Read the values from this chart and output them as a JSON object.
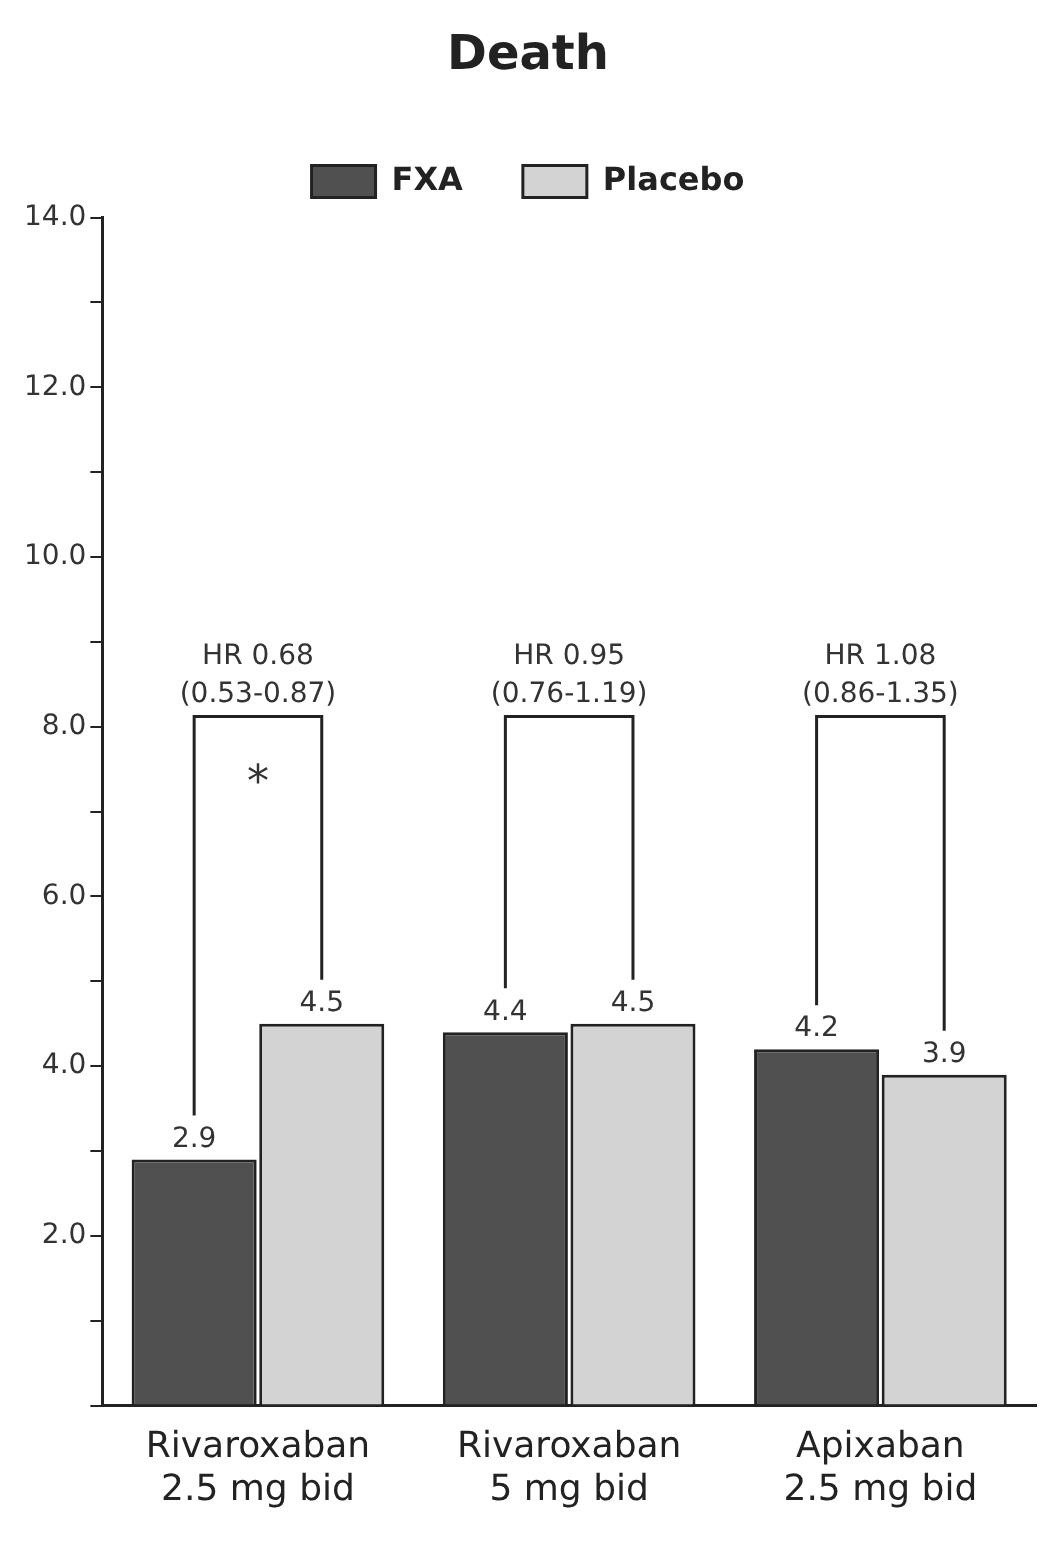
{
  "chart_data": {
    "type": "bar",
    "title": "Death",
    "categories": [
      "Rivaroxaban\n2.5 mg bid",
      "Rivaroxaban\n5 mg bid",
      "Apixaban\n2.5 mg bid"
    ],
    "series": [
      {
        "name": "FXA",
        "color": "#505050",
        "values": [
          2.9,
          4.4,
          4.2
        ]
      },
      {
        "name": "Placebo",
        "color": "#d3d3d3",
        "values": [
          4.5,
          4.5,
          3.9
        ]
      }
    ],
    "ylim": [
      0,
      14
    ],
    "yticks": [
      {
        "value": 0,
        "label": null
      },
      {
        "value": 1,
        "label": null
      },
      {
        "value": 2,
        "label": "2.0"
      },
      {
        "value": 3,
        "label": null
      },
      {
        "value": 4,
        "label": "4.0"
      },
      {
        "value": 5,
        "label": null
      },
      {
        "value": 6,
        "label": "6.0"
      },
      {
        "value": 7,
        "label": null
      },
      {
        "value": 8,
        "label": "8.0"
      },
      {
        "value": 9,
        "label": null
      },
      {
        "value": 10,
        "label": "10.0"
      },
      {
        "value": 11,
        "label": null
      },
      {
        "value": 12,
        "label": "12.0"
      },
      {
        "value": 13,
        "label": null
      },
      {
        "value": 14,
        "label": "14.0"
      }
    ],
    "annotations": [
      "HR 0.68\n(0.53-0.87)",
      "HR 0.95\n(0.76-1.19)",
      "HR 1.08\n(0.86-1.35)",
      "*"
    ],
    "data_labels": true,
    "grid": false,
    "legend": "top"
  }
}
